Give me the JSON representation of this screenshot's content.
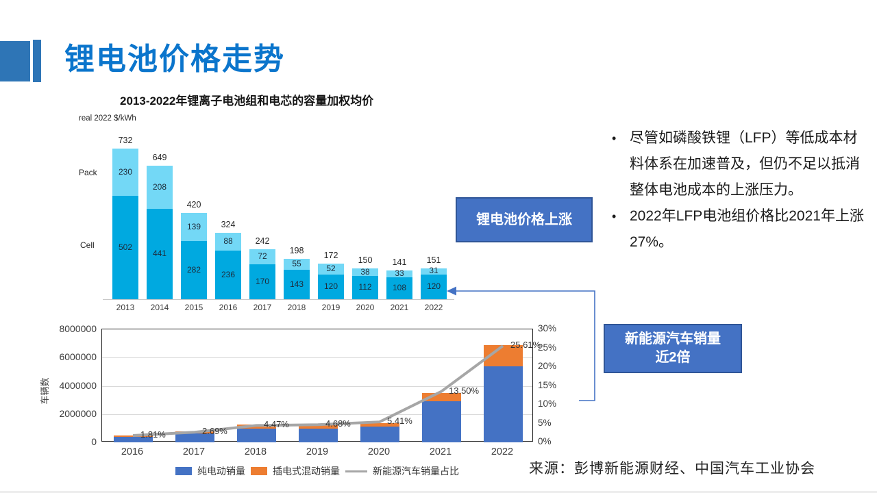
{
  "slide": {
    "title": "锂电池价格走势",
    "bullets": [
      "尽管如磷酸铁锂（LFP）等低成本材料体系在加速普及，但仍不足以抵消整体电池成本的上涨压力。",
      "2022年LFP电池组价格比2021年上涨27%。"
    ],
    "callouts": [
      {
        "lines": [
          "锂电池价格上涨"
        ]
      },
      {
        "lines": [
          "新能源汽车销量",
          "近2倍"
        ]
      }
    ],
    "source": "来源：彭博新能源财经、中国汽车工业协会"
  },
  "colors": {
    "accent": "#2E75B6",
    "title_blue": "#0B75CC",
    "callout_fill": "#4472C4",
    "callout_border": "#2F5597",
    "cell_segment": "#00A9E0",
    "pack_segment": "#73D8F6",
    "bev_bar": "#4472C4",
    "phev_bar": "#ED7D31",
    "share_line": "#A6A6A6"
  },
  "chart_data": [
    {
      "type": "bar",
      "stacked": true,
      "title": "2013-2022年锂离子电池组和电芯的容量加权均价",
      "unit_label": "real 2022 $/kWh",
      "side_labels": [
        "Pack",
        "Cell"
      ],
      "categories": [
        "2013",
        "2014",
        "2015",
        "2016",
        "2017",
        "2018",
        "2019",
        "2020",
        "2021",
        "2022"
      ],
      "series": [
        {
          "name": "Cell",
          "color": "#00A9E0",
          "values": [
            502,
            441,
            282,
            236,
            170,
            143,
            120,
            112,
            108,
            120
          ]
        },
        {
          "name": "Pack",
          "color": "#73D8F6",
          "values": [
            230,
            208,
            139,
            88,
            72,
            55,
            52,
            38,
            33,
            31
          ]
        }
      ],
      "totals": [
        732,
        649,
        420,
        324,
        242,
        198,
        172,
        150,
        141,
        151
      ],
      "grid": false,
      "legend_position": "left-side-labels"
    },
    {
      "type": "bar+line",
      "stacked": true,
      "categories": [
        "2016",
        "2017",
        "2018",
        "2019",
        "2020",
        "2021",
        "2022"
      ],
      "series": [
        {
          "name": "纯电动销量",
          "color": "#4472C4",
          "values": [
            410000,
            650000,
            990000,
            970000,
            1110000,
            2900000,
            5400000
          ]
        },
        {
          "name": "插电式混动销量",
          "color": "#ED7D31",
          "values": [
            100000,
            130000,
            270000,
            230000,
            250000,
            600000,
            1500000
          ]
        }
      ],
      "line": {
        "name": "新能源汽车销量占比",
        "color": "#A6A6A6",
        "values": [
          1.81,
          2.69,
          4.47,
          4.68,
          5.41,
          13.5,
          25.61
        ],
        "labels": [
          "1.81%",
          "2.69%",
          "4.47%",
          "4.68%",
          "5.41%",
          "13.50%",
          "25.61%"
        ]
      },
      "ylabel": "车辆数",
      "y_left": {
        "min": 0,
        "max": 8000000,
        "ticks": [
          "0",
          "2000000",
          "4000000",
          "6000000",
          "8000000"
        ],
        "tick_values": [
          0,
          2000000,
          4000000,
          6000000,
          8000000
        ]
      },
      "y_right": {
        "min": 0,
        "max": 30,
        "ticks": [
          "0%",
          "5%",
          "10%",
          "15%",
          "20%",
          "25%",
          "30%"
        ],
        "tick_values": [
          0,
          5,
          10,
          15,
          20,
          25,
          30
        ]
      },
      "grid": true,
      "legend_position": "bottom"
    }
  ]
}
